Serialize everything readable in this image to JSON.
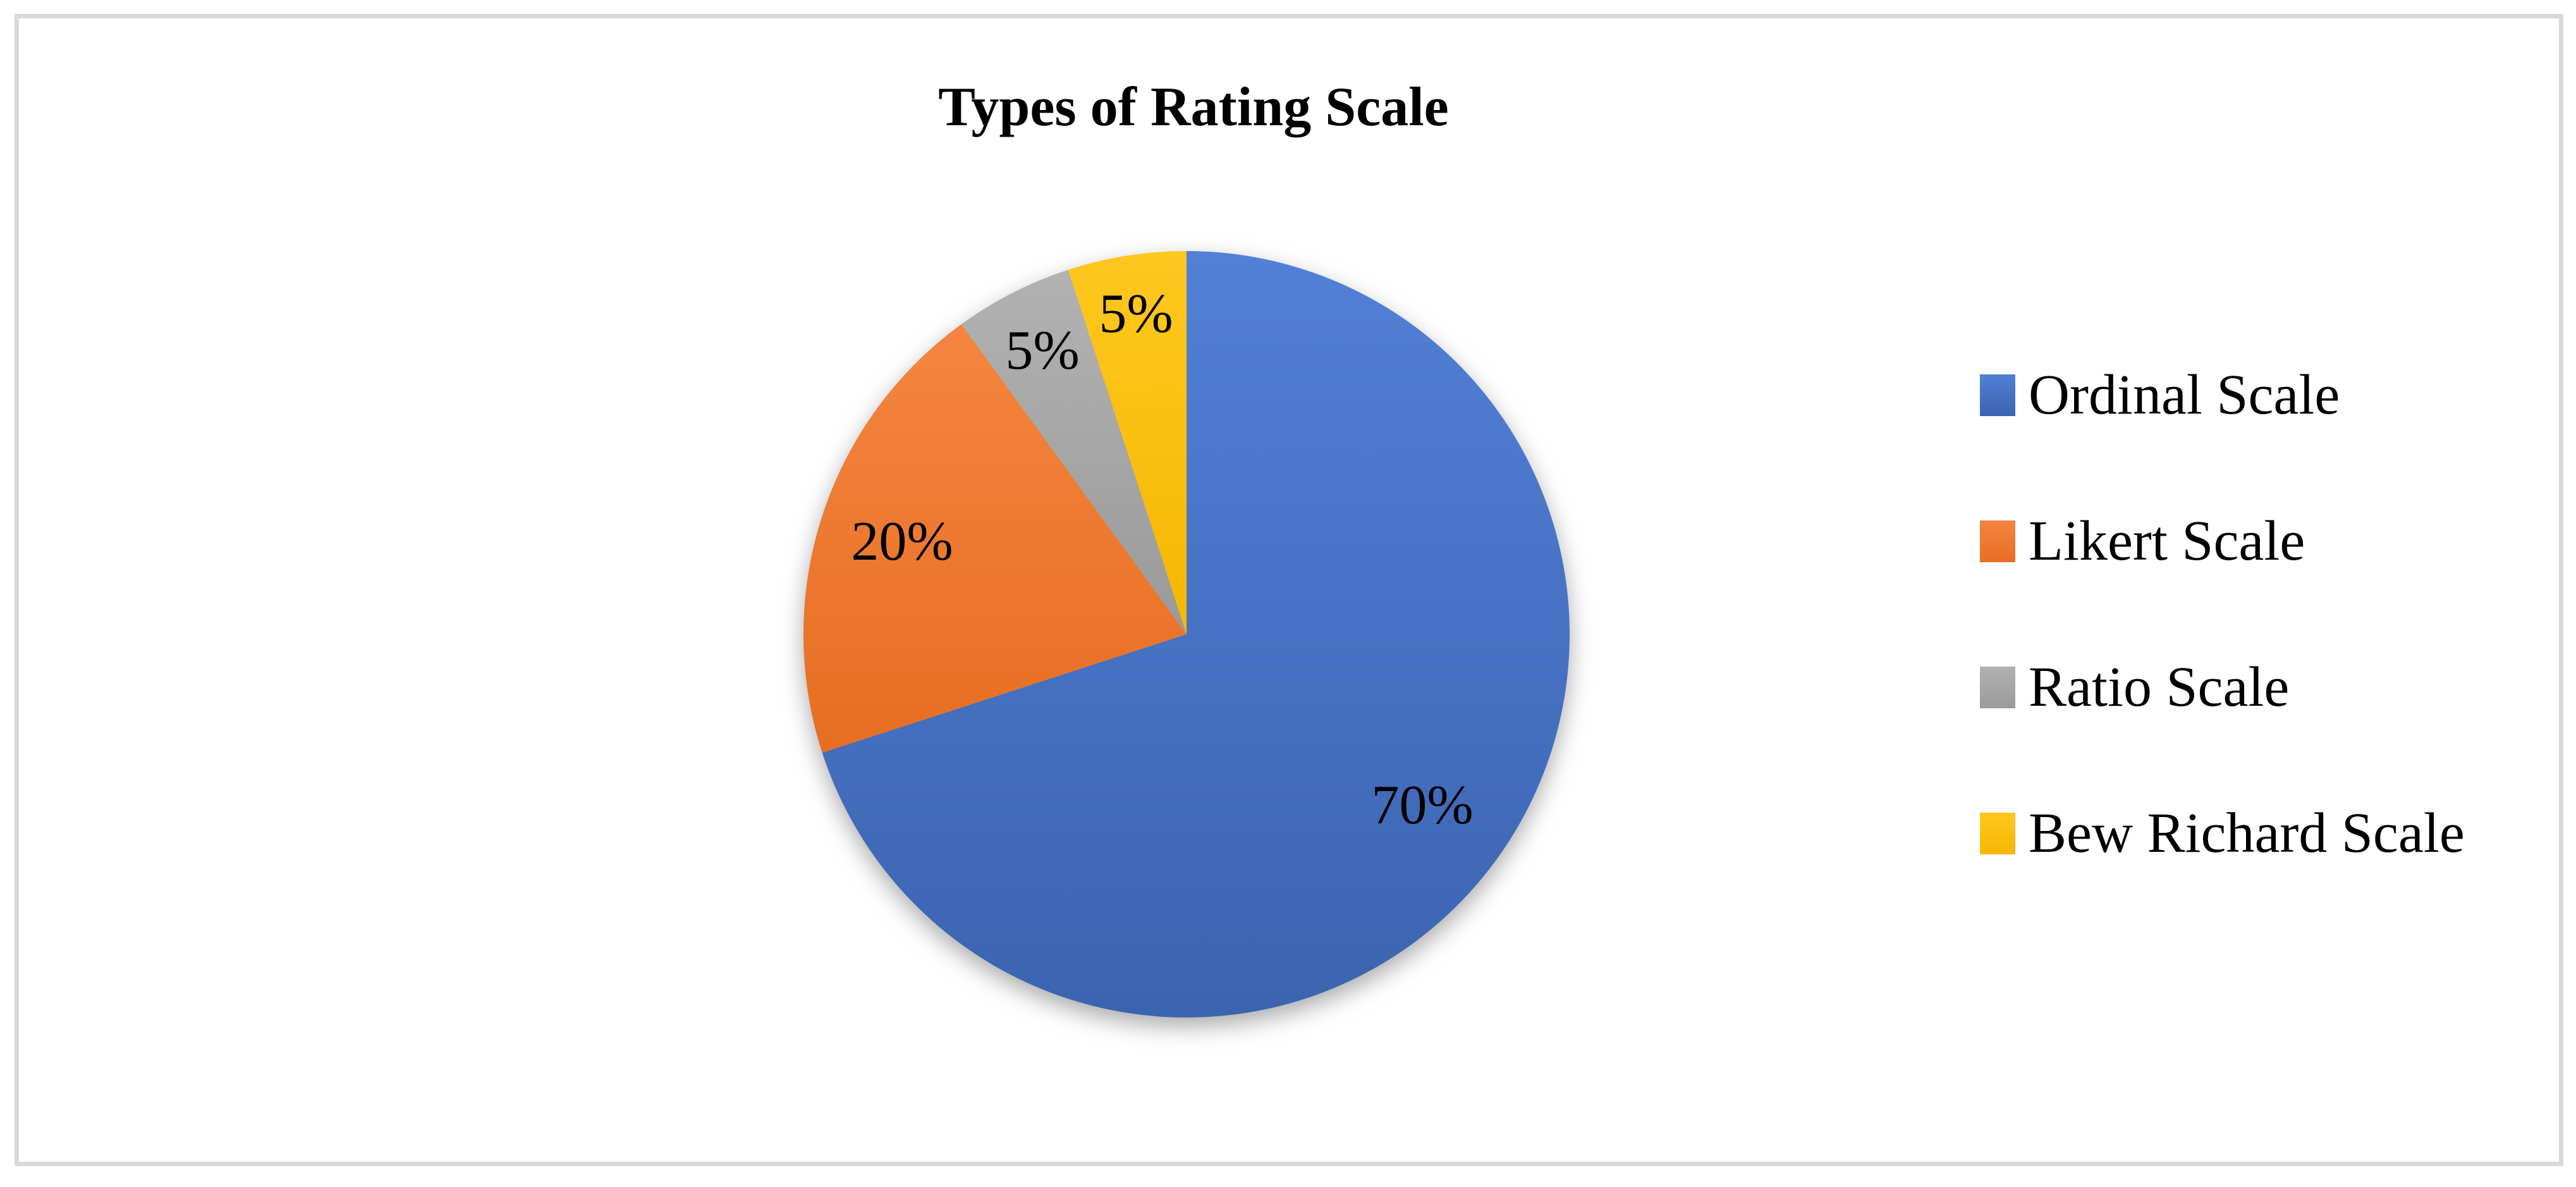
{
  "chart_data": {
    "type": "pie",
    "title": "Types of Rating Scale",
    "start_angle_deg": 0,
    "direction": "clockwise",
    "legend_position": "right",
    "grid": false,
    "total": 100,
    "categories": [
      "Ordinal Scale",
      "Likert Scale",
      "Ratio Scale",
      "Bew Richard Scale"
    ],
    "values": [
      70,
      20,
      5,
      5
    ],
    "slices": [
      {
        "category": "Ordinal Scale",
        "value": 70,
        "label": "70%",
        "color": "#4472C4",
        "gradient_top": "#5280D6",
        "gradient_bottom": "#3B64B0",
        "label_radius_frac": 0.76
      },
      {
        "category": "Likert Scale",
        "value": 20,
        "label": "20%",
        "color": "#ED7D31",
        "gradient_top": "#F5853F",
        "gradient_bottom": "#E66E22",
        "label_radius_frac": 0.78
      },
      {
        "category": "Ratio Scale",
        "value": 5,
        "label": "5%",
        "color": "#A5A5A5",
        "gradient_top": "#B2B2B2",
        "gradient_bottom": "#9A9A9A",
        "label_radius_frac": 0.83
      },
      {
        "category": "Bew Richard Scale",
        "value": 5,
        "label": "5%",
        "color": "#FFC000",
        "gradient_top": "#FFC71F",
        "gradient_bottom": "#F5B800",
        "label_radius_frac": 0.845
      }
    ],
    "frame_border_color": "#D9D9D9",
    "text_color": "#000000"
  }
}
